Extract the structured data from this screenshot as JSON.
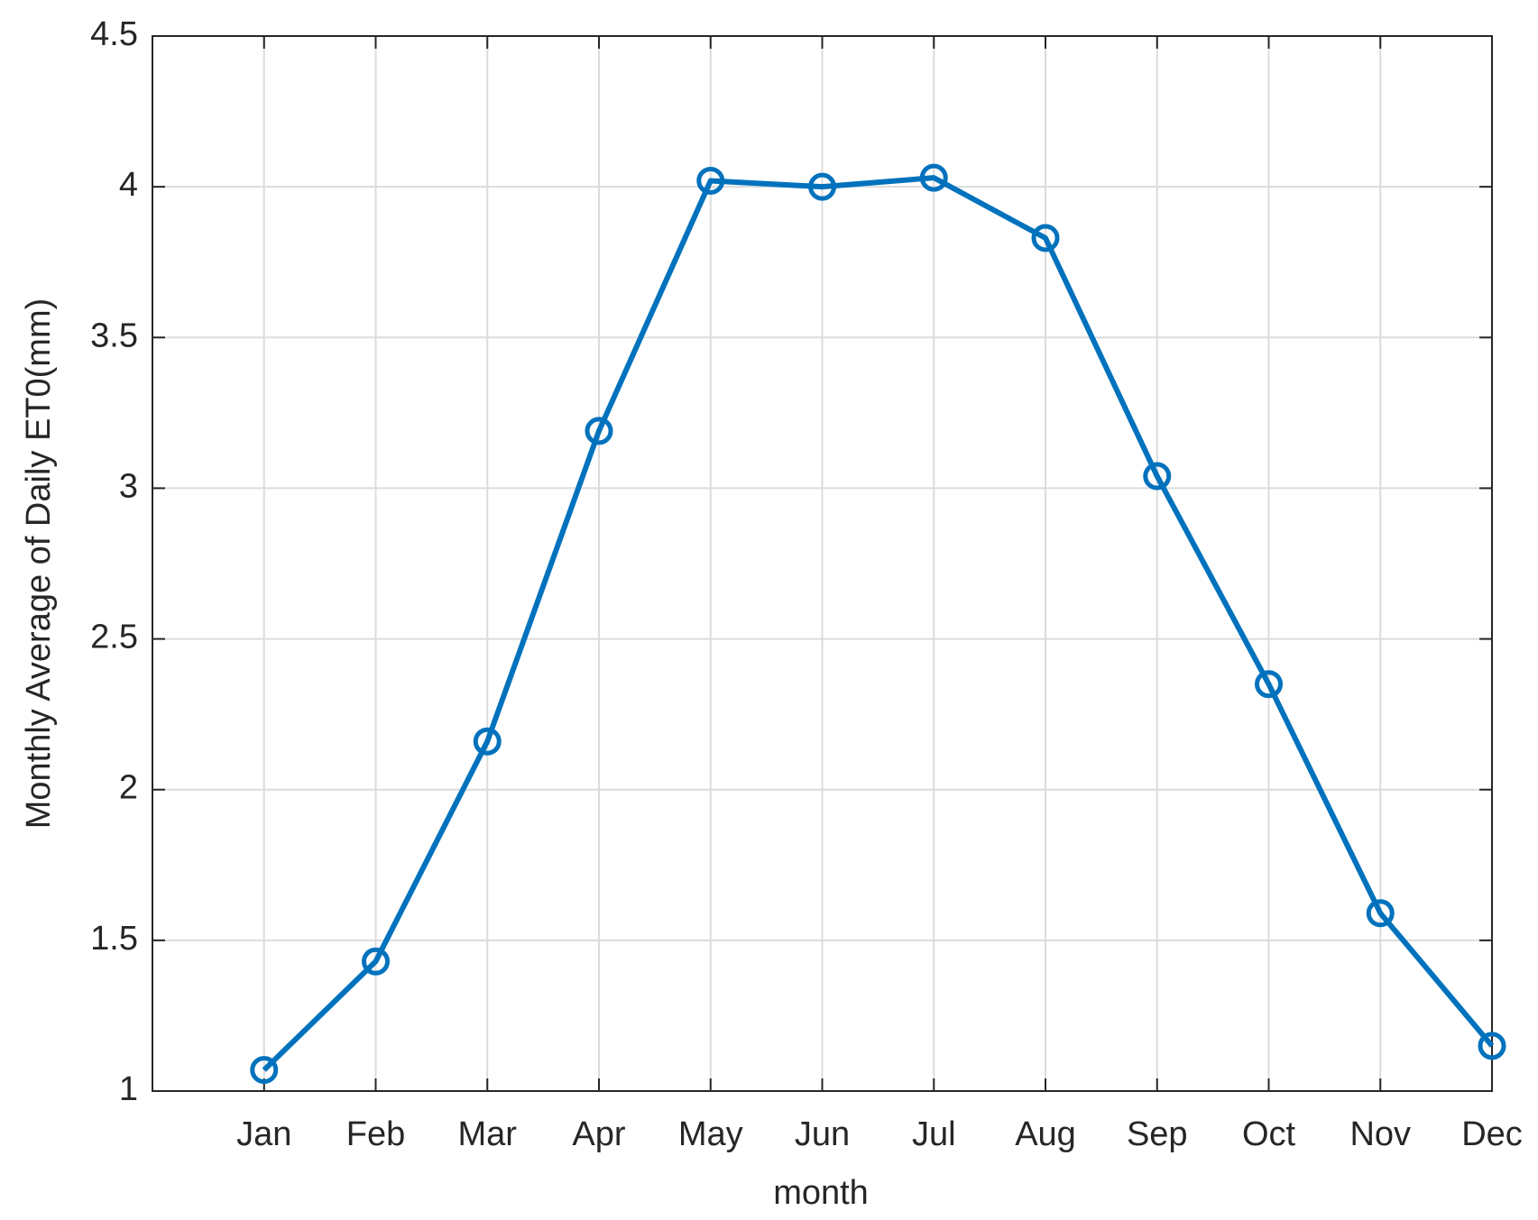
{
  "chart_data": {
    "type": "line",
    "x_label": "month",
    "y_label": "Monthly Average of Daily ET0(mm)",
    "categories": [
      "Jan",
      "Feb",
      "Mar",
      "Apr",
      "May",
      "Jun",
      "Jul",
      "Aug",
      "Sep",
      "Oct",
      "Nov",
      "Dec"
    ],
    "values": [
      1.07,
      1.43,
      2.16,
      3.19,
      4.02,
      4.0,
      4.03,
      3.83,
      3.04,
      2.35,
      1.59,
      1.15
    ],
    "color": "#0072bd",
    "ylim": [
      1,
      4.5
    ],
    "yticks": [
      1,
      1.5,
      2,
      2.5,
      3,
      3.5,
      4,
      4.5
    ],
    "grid": true,
    "marker": "circle"
  }
}
